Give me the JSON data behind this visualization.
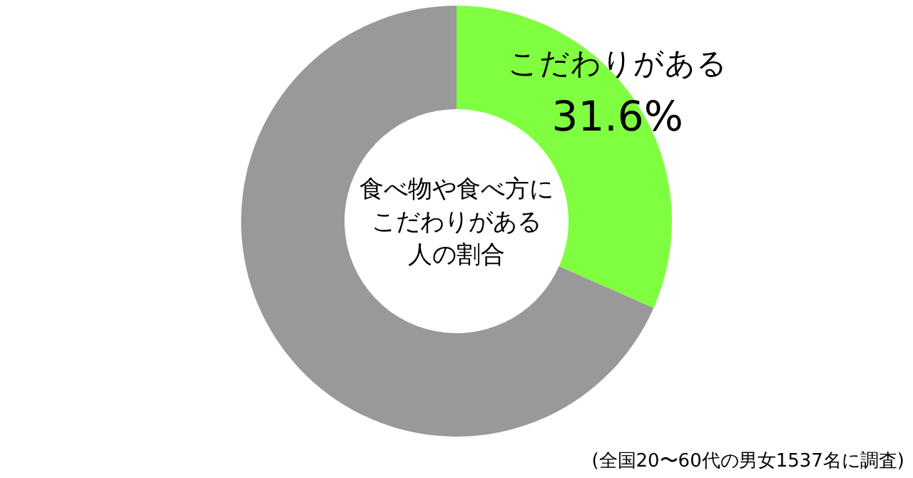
{
  "chart_data": {
    "type": "donut",
    "categories": [
      "こだわりがある",
      null
    ],
    "values": [
      31.6,
      68.4
    ],
    "colors": [
      "#80ff40",
      "#999999"
    ],
    "value_labels": [
      "31.6%",
      null
    ],
    "annotations": [
      "食べ物や食べ方に",
      "こだわりがある",
      "人の割合",
      "(全国20〜60代の男女1537名に調査)"
    ]
  }
}
